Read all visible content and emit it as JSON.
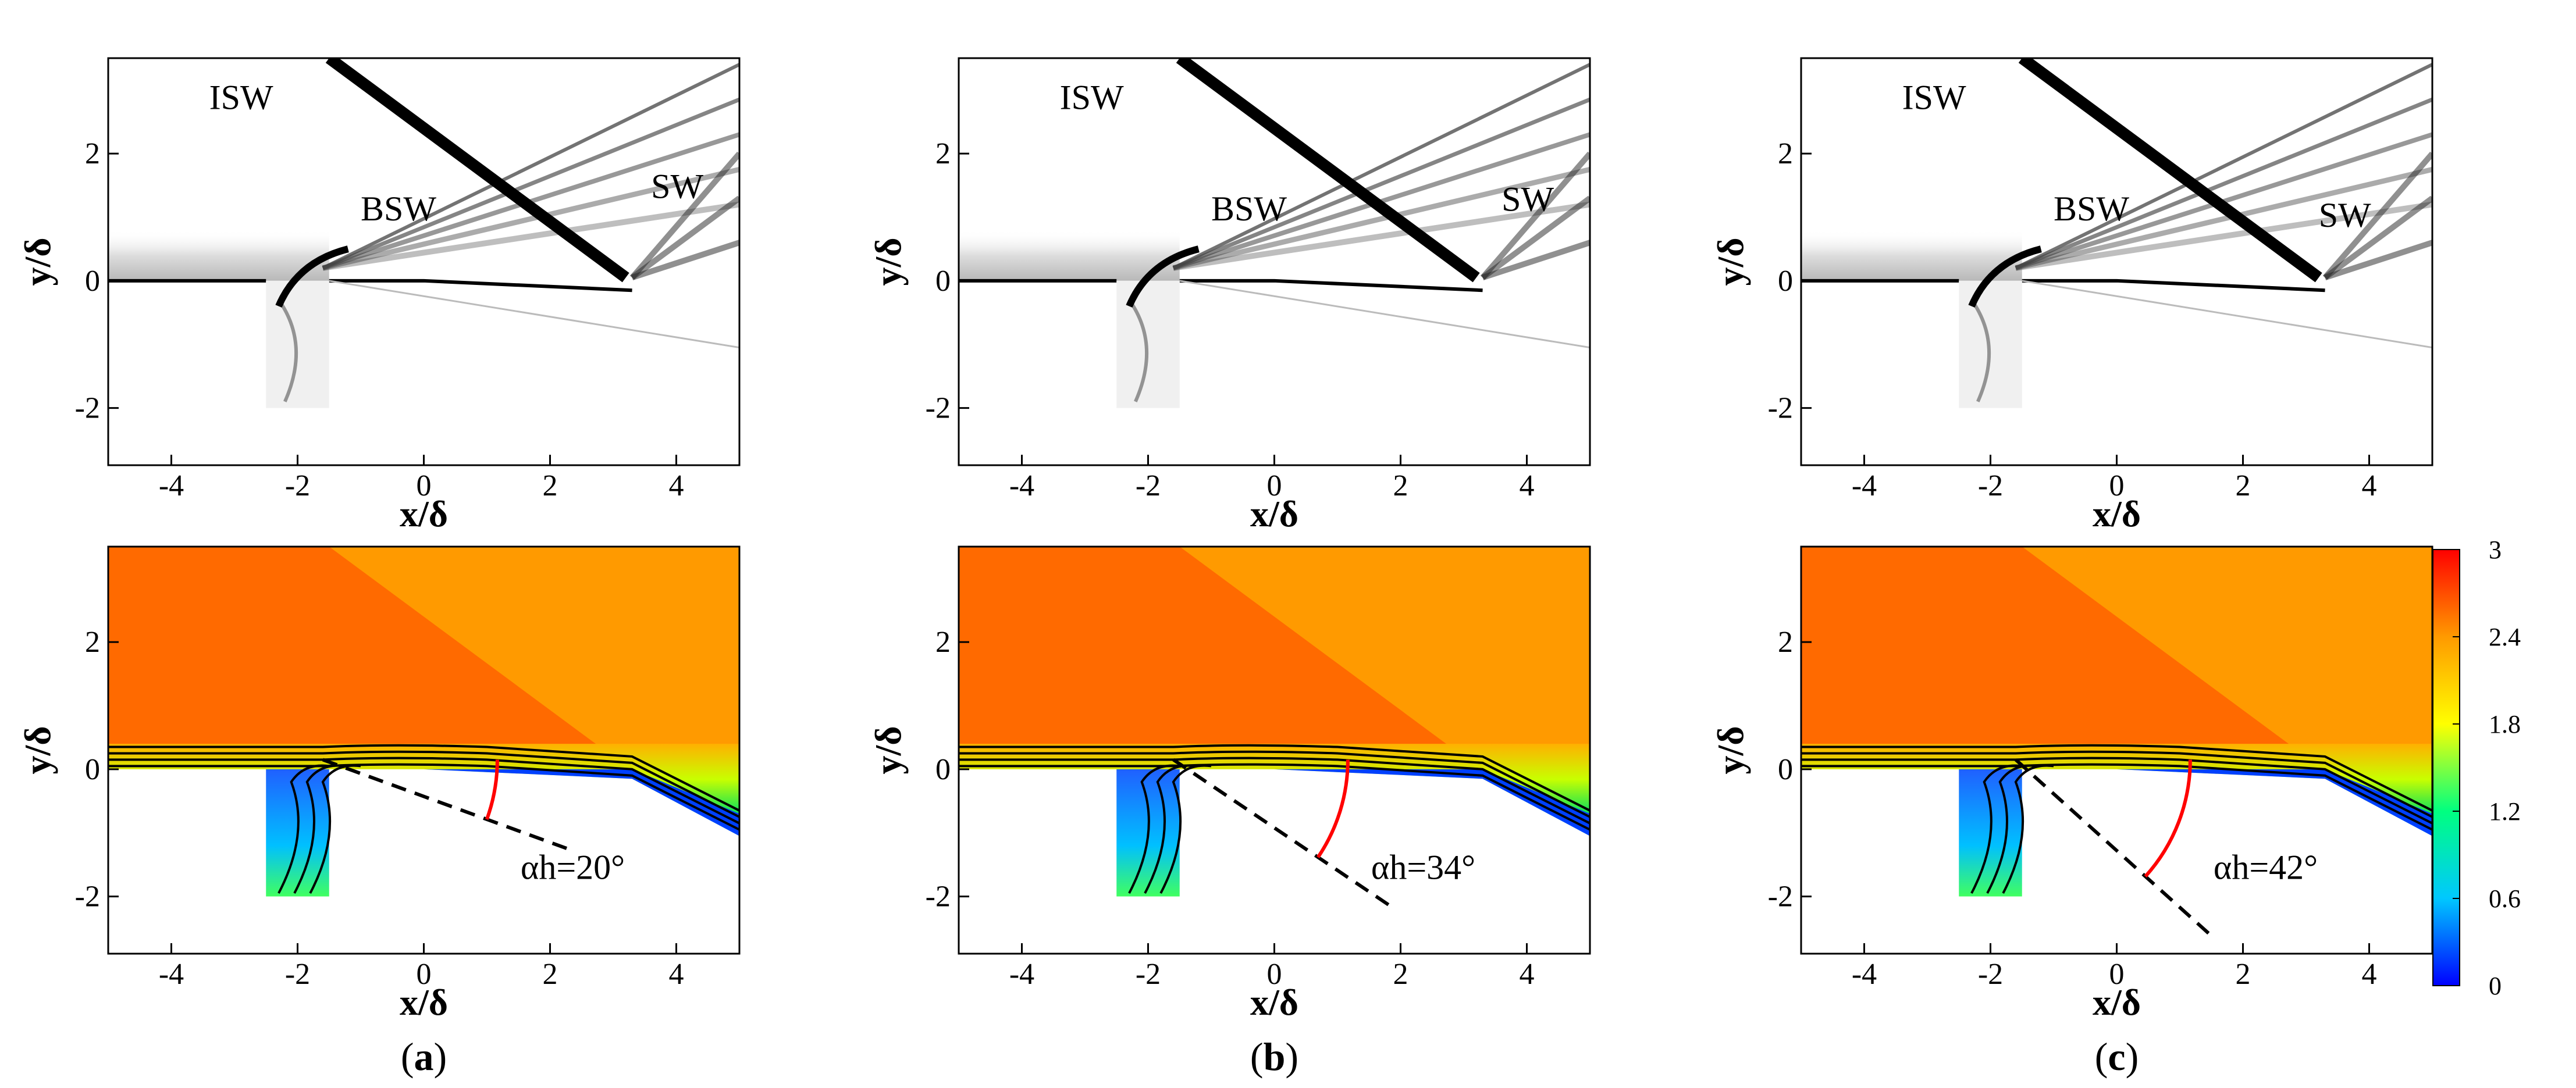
{
  "chart_data": [
    {
      "type": "contour",
      "kind": "schlieren",
      "panel": "a-top",
      "xlabel": "x/δ",
      "ylabel": "y/δ",
      "xlim": [
        -5,
        5
      ],
      "ylim": [
        -2.9,
        3.5
      ],
      "xticks": [
        -4,
        -2,
        0,
        2,
        4
      ],
      "yticks": [
        -2,
        0,
        2
      ],
      "annotations": [
        "ISW",
        "BSW",
        "SW"
      ]
    },
    {
      "type": "contour",
      "kind": "schlieren",
      "panel": "b-top",
      "xlabel": "x/δ",
      "ylabel": "y/δ",
      "xlim": [
        -5,
        5
      ],
      "ylim": [
        -2.9,
        3.5
      ],
      "xticks": [
        -4,
        -2,
        0,
        2,
        4
      ],
      "yticks": [
        -2,
        0,
        2
      ],
      "annotations": [
        "ISW",
        "BSW",
        "SW"
      ]
    },
    {
      "type": "contour",
      "kind": "schlieren",
      "panel": "c-top",
      "xlabel": "x/δ",
      "ylabel": "y/δ",
      "xlim": [
        -5,
        5
      ],
      "ylim": [
        -2.9,
        3.5
      ],
      "xticks": [
        -4,
        -2,
        0,
        2,
        4
      ],
      "yticks": [
        -2,
        0,
        2
      ],
      "annotations": [
        "ISW",
        "BSW",
        "SW"
      ]
    },
    {
      "type": "contour",
      "kind": "mach",
      "panel": "a-bottom",
      "xlabel": "x/δ",
      "ylabel": "y/δ",
      "xlim": [
        -5,
        5
      ],
      "ylim": [
        -2.9,
        3.5
      ],
      "xticks": [
        -4,
        -2,
        0,
        2,
        4
      ],
      "yticks": [
        -2,
        0,
        2
      ],
      "angle_label": "αh=20°",
      "angle_deg": 20
    },
    {
      "type": "contour",
      "kind": "mach",
      "panel": "b-bottom",
      "xlabel": "x/δ",
      "ylabel": "y/δ",
      "xlim": [
        -5,
        5
      ],
      "ylim": [
        -2.9,
        3.5
      ],
      "xticks": [
        -4,
        -2,
        0,
        2,
        4
      ],
      "yticks": [
        -2,
        0,
        2
      ],
      "angle_label": "αh=34°",
      "angle_deg": 34
    },
    {
      "type": "contour",
      "kind": "mach",
      "panel": "c-bottom",
      "xlabel": "x/δ",
      "ylabel": "y/δ",
      "xlim": [
        -5,
        5
      ],
      "ylim": [
        -2.9,
        3.5
      ],
      "xticks": [
        -4,
        -2,
        0,
        2,
        4
      ],
      "yticks": [
        -2,
        0,
        2
      ],
      "angle_label": "αh=42°",
      "angle_deg": 42
    }
  ],
  "colorbar": {
    "range": [
      0,
      3
    ],
    "ticks": [
      "0",
      "0.6",
      "1.2",
      "1.8",
      "2.4",
      "3"
    ],
    "colors": [
      "#0000ff",
      "#00c8ff",
      "#00ff80",
      "#ffff00",
      "#ff9a00",
      "#ff0000"
    ]
  },
  "captions": [
    "a",
    "b",
    "c"
  ]
}
